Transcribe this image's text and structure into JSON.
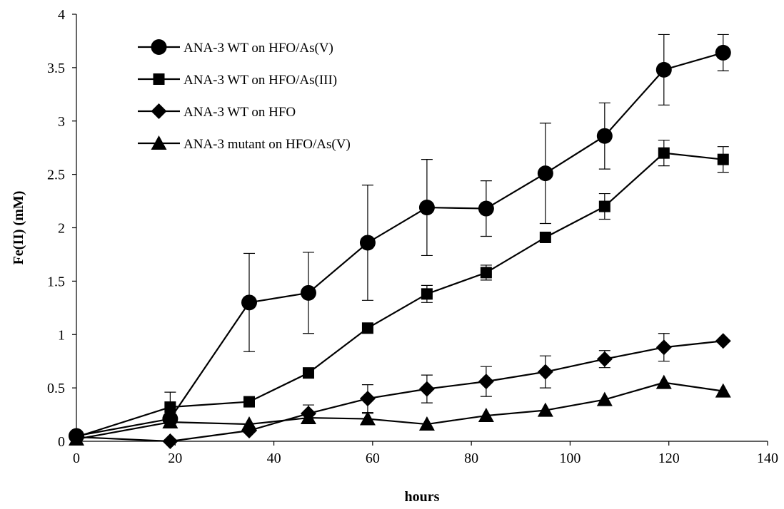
{
  "chart_data": {
    "type": "line",
    "title": "",
    "xlabel": "hours",
    "ylabel": "Fe(II) (mM)",
    "xlim": [
      0,
      140
    ],
    "ylim": [
      0,
      4
    ],
    "xticks": [
      0,
      20,
      40,
      60,
      80,
      100,
      120,
      140
    ],
    "yticks": [
      0,
      0.5,
      1,
      1.5,
      2,
      2.5,
      3,
      3.5,
      4
    ],
    "grid": false,
    "legend_position": "top-left",
    "series": [
      {
        "name": "ANA-3 WT on HFO/As(V)",
        "marker": "circle",
        "x": [
          0,
          19,
          35,
          47,
          59,
          71,
          83,
          95,
          107,
          119,
          131
        ],
        "y": [
          0.05,
          0.21,
          1.3,
          1.39,
          1.86,
          2.19,
          2.18,
          2.51,
          2.86,
          3.48,
          3.64
        ],
        "err": [
          0,
          0,
          0.46,
          0.38,
          0.54,
          0.45,
          0.26,
          0.47,
          0.31,
          0.33,
          0.17
        ]
      },
      {
        "name": "ANA-3 WT on HFO/As(III)",
        "marker": "square",
        "x": [
          0,
          19,
          35,
          47,
          59,
          71,
          83,
          95,
          107,
          119,
          131
        ],
        "y": [
          0.04,
          0.32,
          0.37,
          0.64,
          1.06,
          1.38,
          1.58,
          1.91,
          2.2,
          2.7,
          2.64
        ],
        "err": [
          0,
          0.14,
          0,
          0,
          0,
          0.08,
          0.07,
          0,
          0.12,
          0.12,
          0.12
        ]
      },
      {
        "name": "ANA-3 WT on HFO",
        "marker": "diamond",
        "x": [
          0,
          19,
          35,
          47,
          59,
          71,
          83,
          95,
          107,
          119,
          131
        ],
        "y": [
          0.04,
          0.0,
          0.1,
          0.26,
          0.4,
          0.49,
          0.56,
          0.65,
          0.77,
          0.88,
          0.94
        ],
        "err": [
          0,
          0,
          0,
          0.08,
          0.13,
          0.13,
          0.14,
          0.15,
          0.08,
          0.13,
          0
        ]
      },
      {
        "name": "ANA-3 mutant on HFO/As(V)",
        "marker": "triangle",
        "x": [
          0,
          19,
          35,
          47,
          59,
          71,
          83,
          95,
          107,
          119,
          131
        ],
        "y": [
          0.02,
          0.18,
          0.16,
          0.22,
          0.21,
          0.16,
          0.24,
          0.29,
          0.39,
          0.55,
          0.47
        ],
        "err": [
          0,
          0,
          0,
          0,
          0.05,
          0,
          0,
          0,
          0,
          0,
          0
        ]
      }
    ]
  }
}
